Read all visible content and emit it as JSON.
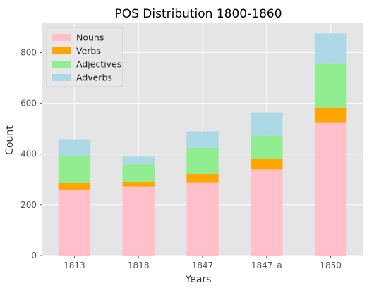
{
  "chart_data": {
    "type": "bar",
    "stacked": true,
    "title": "POS Distribution 1800-1860",
    "xlabel": "Years",
    "ylabel": "Count",
    "categories": [
      "1813",
      "1818",
      "1847",
      "1847_a",
      "1850"
    ],
    "series": [
      {
        "name": "Nouns",
        "color": "#ffc0cb",
        "values": [
          258,
          273,
          287,
          340,
          525
        ]
      },
      {
        "name": "Verbs",
        "color": "#ffa500",
        "values": [
          28,
          17,
          35,
          40,
          58
        ]
      },
      {
        "name": "Adjectives",
        "color": "#90ee90",
        "values": [
          105,
          70,
          103,
          92,
          172
        ]
      },
      {
        "name": "Adverbs",
        "color": "#add8e6",
        "values": [
          65,
          30,
          64,
          92,
          120
        ]
      }
    ],
    "ylim": [
      0,
      915
    ],
    "yticks": [
      0,
      200,
      400,
      600,
      800
    ],
    "grid": true,
    "legend_position": "top-left",
    "plot_background": "#e5e5e5"
  }
}
